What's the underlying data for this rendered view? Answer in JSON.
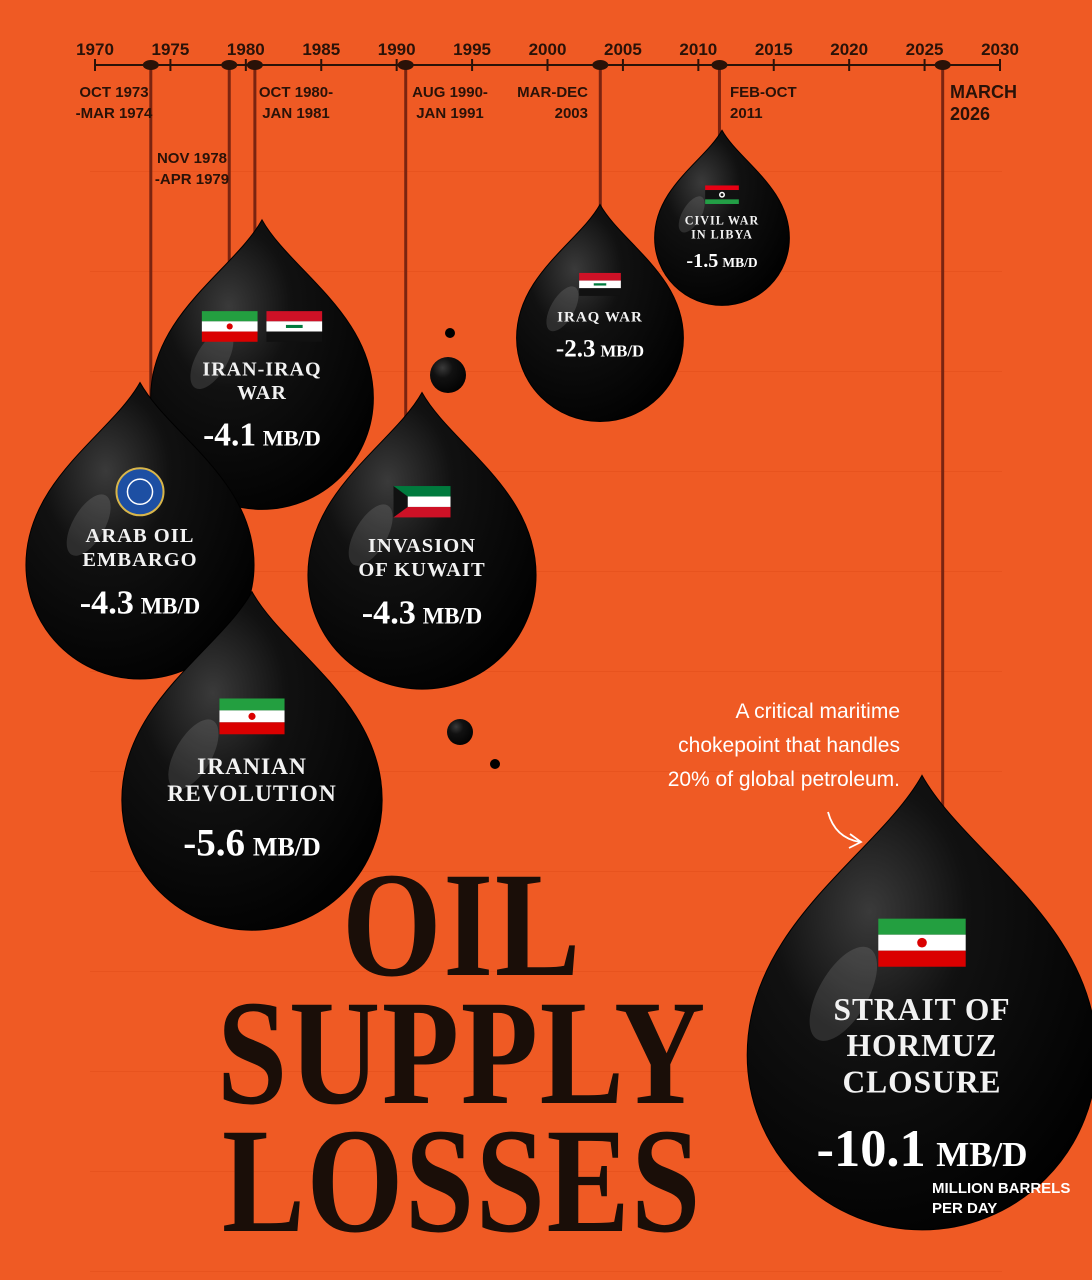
{
  "title": [
    "OIL",
    "SUPPLY",
    "LOSSES"
  ],
  "timeline": {
    "ticks": [
      1970,
      1975,
      1980,
      1985,
      1990,
      1995,
      2000,
      2005,
      2010,
      2015,
      2020,
      2025,
      2030
    ],
    "events": [
      {
        "date_lines": [
          "OCT 1973",
          "-MAR 1974"
        ],
        "x": 1973.7
      },
      {
        "date_lines": [
          "NOV 1978",
          "-APR 1979"
        ],
        "x": 1978.9
      },
      {
        "date_lines": [
          "OCT 1980-",
          "JAN 1981"
        ],
        "x": 1980.6
      },
      {
        "date_lines": [
          "AUG 1990-",
          "JAN 1991"
        ],
        "x": 1990.6
      },
      {
        "date_lines": [
          "MAR-DEC",
          "2003"
        ],
        "x": 2003.5
      },
      {
        "date_lines": [
          "FEB-OCT",
          "2011"
        ],
        "x": 2011.4
      },
      {
        "date_lines": [
          "MARCH",
          "2026"
        ],
        "x": 2026.2
      }
    ]
  },
  "drops": [
    {
      "name_lines": [
        "ARAB OIL",
        "EMBARGO"
      ],
      "value": -4.3,
      "unit": "MB/D"
    },
    {
      "name_lines": [
        "IRANIAN",
        "REVOLUTION"
      ],
      "value": -5.6,
      "unit": "MB/D"
    },
    {
      "name_lines": [
        "IRAN-IRAQ",
        "WAR"
      ],
      "value": -4.1,
      "unit": "MB/D"
    },
    {
      "name_lines": [
        "INVASION",
        "OF KUWAIT"
      ],
      "value": -4.3,
      "unit": "MB/D"
    },
    {
      "name_lines": [
        "IRAQ WAR"
      ],
      "value": -2.3,
      "unit": "MB/D"
    },
    {
      "name_lines": [
        "CIVIL WAR",
        "IN LIBYA"
      ],
      "value": -1.5,
      "unit": "MB/D"
    },
    {
      "name_lines": [
        "STRAIT OF",
        "HORMUZ",
        "CLOSURE"
      ],
      "value": -10.1,
      "unit": "MB/D"
    }
  ],
  "annotation": [
    "A critical maritime",
    "chokepoint that handles",
    "20% of global petroleum."
  ],
  "unit_note": [
    "MILLION BARRELS",
    "PER DAY"
  ]
}
